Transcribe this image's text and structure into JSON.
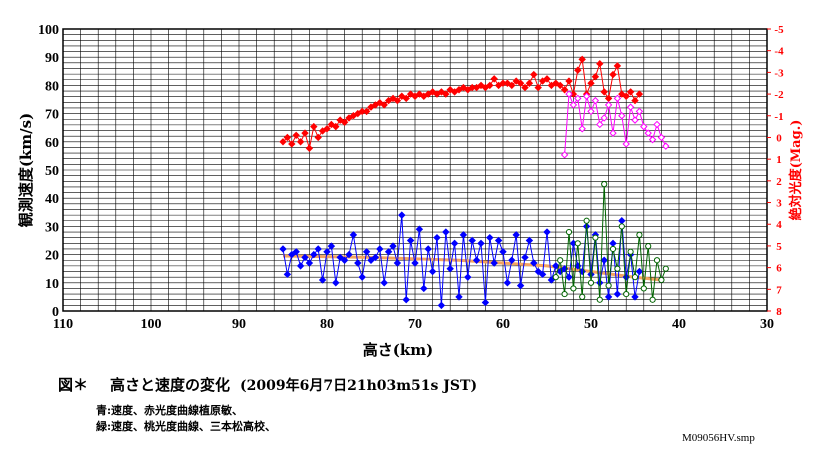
{
  "caption": {
    "fig_label": "図＊",
    "title": "高さと速度の変化",
    "datetime": "(2009年6月7日21h03m51s JST)",
    "note_blue": "青:速度、赤光度曲線植原敏、",
    "note_green": "緑:速度、桃光度曲線、三本松高校、",
    "file": "M09056HV.smp"
  },
  "chart_data": {
    "type": "scatter",
    "xlabel": "高さ(km)",
    "ylabel": "観測速度(km/s)",
    "y2label": "絶対光度(Mag.)",
    "xlim": [
      110,
      30
    ],
    "ylim": [
      0,
      100
    ],
    "y2lim": [
      8,
      -5
    ],
    "xticks": [
      "110",
      "100",
      "90",
      "80",
      "70",
      "60",
      "50",
      "40",
      "30"
    ],
    "yticks": [
      "0",
      "10",
      "20",
      "30",
      "40",
      "50",
      "60",
      "70",
      "80",
      "90",
      "100"
    ],
    "y2ticks": [
      "8",
      "7",
      "6",
      "5",
      "4",
      "3",
      "2",
      "1",
      "0",
      "-1",
      "-2",
      "-3",
      "-4",
      "-5"
    ],
    "grid": true,
    "colors": {
      "blue": "#0000ff",
      "red": "#ff0000",
      "green": "#006400",
      "magenta": "#ff00ff",
      "trend": "#f4a460"
    },
    "series": [
      {
        "color": "blue",
        "axis": "velocity",
        "marker": "diamond",
        "x": [
          85.0,
          84.5,
          84.0,
          83.5,
          83.0,
          82.5,
          82.0,
          81.5,
          81.0,
          80.5,
          80.0,
          79.5,
          79.0,
          78.5,
          78.0,
          77.5,
          77.0,
          76.5,
          76.0,
          75.5,
          75.0,
          74.5,
          74.0,
          73.5,
          73.0,
          72.5,
          72.0,
          71.5,
          71.0,
          70.5,
          70.0,
          69.5,
          69.0,
          68.5,
          68.0,
          67.5,
          67.0,
          66.5,
          66.0,
          65.5,
          65.0,
          64.5,
          64.0,
          63.5,
          63.0,
          62.5,
          62.0,
          61.5,
          61.0,
          60.5,
          60.0,
          59.5,
          59.0,
          58.5,
          58.0,
          57.5,
          57.0,
          56.5,
          56.0,
          55.5,
          55.0,
          54.5,
          54.0,
          53.5,
          53.0,
          52.5,
          52.0,
          51.5,
          51.0,
          50.5,
          50.0,
          49.5,
          49.0,
          48.5,
          48.0,
          47.5,
          47.0,
          46.5,
          46.0,
          45.5,
          45.0,
          44.5
        ],
        "y": [
          22,
          13,
          20,
          21,
          16,
          19,
          17,
          20,
          22,
          11,
          21,
          23,
          10,
          19,
          18,
          20,
          27,
          17,
          12,
          21,
          18,
          19,
          22,
          10,
          21,
          23,
          17,
          34,
          4,
          25,
          17,
          29,
          8,
          22,
          14,
          26,
          2,
          28,
          15,
          24,
          5,
          27,
          12,
          25,
          18,
          24,
          3,
          26,
          17,
          25,
          21,
          10,
          18,
          27,
          9,
          19,
          25,
          17,
          14,
          13,
          28,
          11,
          16,
          14,
          15,
          12,
          24,
          16,
          14,
          30,
          13,
          27,
          10,
          18,
          5,
          24,
          6,
          32,
          12,
          20,
          5,
          14
        ]
      },
      {
        "color": "green",
        "axis": "velocity",
        "marker": "open-circle",
        "x": [
          54.0,
          53.5,
          53.0,
          52.5,
          52.0,
          51.5,
          51.0,
          50.5,
          50.0,
          49.5,
          49.0,
          48.5,
          48.0,
          47.5,
          47.0,
          46.5,
          46.0,
          45.5,
          45.0,
          44.5,
          44.0,
          43.5,
          43.0,
          42.5,
          42.0,
          41.5
        ],
        "y": [
          12,
          18,
          6,
          28,
          8,
          24,
          5,
          32,
          10,
          26,
          4,
          45,
          9,
          22,
          15,
          30,
          6,
          21,
          12,
          27,
          8,
          23,
          4,
          18,
          11,
          15
        ]
      },
      {
        "color": "red",
        "axis": "magnitude",
        "marker": "diamond",
        "x": [
          85.0,
          84.5,
          84.0,
          83.5,
          83.0,
          82.5,
          82.0,
          81.5,
          81.0,
          80.5,
          80.0,
          79.5,
          79.0,
          78.5,
          78.0,
          77.5,
          77.0,
          76.5,
          76.0,
          75.5,
          75.0,
          74.5,
          74.0,
          73.5,
          73.0,
          72.5,
          72.0,
          71.5,
          71.0,
          70.5,
          70.0,
          69.5,
          69.0,
          68.5,
          68.0,
          67.5,
          67.0,
          66.5,
          66.0,
          65.5,
          65.0,
          64.5,
          64.0,
          63.5,
          63.0,
          62.5,
          62.0,
          61.5,
          61.0,
          60.5,
          60.0,
          59.5,
          59.0,
          58.5,
          58.0,
          57.5,
          57.0,
          56.5,
          56.0,
          55.5,
          55.0,
          54.5,
          54.0,
          53.5,
          53.0,
          52.5,
          52.0,
          51.5,
          51.0,
          50.5,
          50.0,
          49.5,
          49.0,
          48.5,
          48.0,
          47.5,
          47.0,
          46.5,
          46.0,
          45.5,
          45.0,
          44.5
        ],
        "y": [
          0.2,
          0.0,
          0.3,
          -0.1,
          0.2,
          -0.2,
          0.5,
          -0.5,
          0.0,
          -0.3,
          -0.4,
          -0.6,
          -0.5,
          -0.8,
          -0.7,
          -0.9,
          -1.0,
          -1.1,
          -1.2,
          -1.2,
          -1.4,
          -1.5,
          -1.6,
          -1.5,
          -1.7,
          -1.8,
          -1.7,
          -1.9,
          -1.8,
          -2.0,
          -1.9,
          -2.0,
          -1.9,
          -2.0,
          -2.1,
          -2.0,
          -2.1,
          -2.0,
          -2.2,
          -2.1,
          -2.2,
          -2.3,
          -2.2,
          -2.3,
          -2.3,
          -2.4,
          -2.3,
          -2.4,
          -2.7,
          -2.4,
          -2.5,
          -2.5,
          -2.4,
          -2.6,
          -2.5,
          -2.3,
          -2.5,
          -2.9,
          -2.3,
          -2.6,
          -2.7,
          -2.4,
          -2.5,
          -2.4,
          -2.2,
          -2.6,
          -2.0,
          -3.1,
          -3.6,
          -2.0,
          -2.5,
          -2.8,
          -3.4,
          -2.1,
          -1.8,
          -2.9,
          -3.3,
          -2.0,
          -1.9,
          -2.1,
          -1.7,
          -2.0
        ]
      },
      {
        "color": "magenta",
        "axis": "magnitude",
        "marker": "open-diamond",
        "x": [
          53.0,
          52.5,
          52.0,
          51.5,
          51.0,
          50.5,
          50.0,
          49.5,
          49.0,
          48.5,
          48.0,
          47.5,
          47.0,
          46.5,
          46.0,
          45.5,
          45.0,
          44.5,
          44.0,
          43.5,
          43.0,
          42.5,
          42.0,
          41.5
        ],
        "y": [
          0.8,
          -2.0,
          -1.5,
          -1.8,
          -0.4,
          -1.9,
          -1.2,
          -1.7,
          -0.6,
          -0.9,
          -1.5,
          -0.2,
          -1.8,
          -1.0,
          0.3,
          -1.4,
          -0.8,
          -1.2,
          -0.5,
          -0.2,
          0.1,
          -0.6,
          0.0,
          0.4
        ]
      }
    ],
    "trend": {
      "color": "trend",
      "x": [
        85.0,
        75.0,
        65.0,
        55.0,
        45.0,
        42.0
      ],
      "y": [
        19.5,
        19.0,
        18.0,
        16.0,
        12.0,
        11.0
      ]
    }
  }
}
